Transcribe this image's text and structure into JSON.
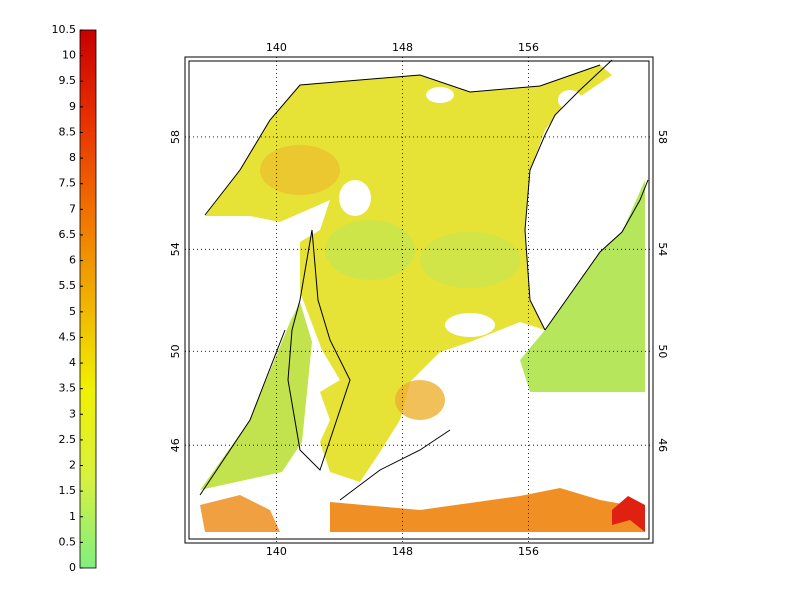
{
  "colorbar": {
    "lim": [
      0,
      10.5
    ],
    "ticks": [
      0,
      0.5,
      1,
      1.5,
      2,
      2.5,
      3,
      3.5,
      4,
      4.5,
      5,
      5.5,
      6,
      6.5,
      7,
      7.5,
      8,
      8.5,
      9,
      9.5,
      10,
      10.5
    ],
    "colors": [
      "#7ff07f",
      "#d8f040",
      "#f0f000",
      "#f0b000",
      "#f07000",
      "#e83000",
      "#c80000"
    ]
  },
  "map": {
    "xlim": [
      134.2,
      163.9
    ],
    "ylim": [
      41.5,
      60.6
    ],
    "xticks": [
      140,
      148,
      156
    ],
    "yticks": [
      46,
      50,
      54,
      58
    ],
    "grid": true
  }
}
